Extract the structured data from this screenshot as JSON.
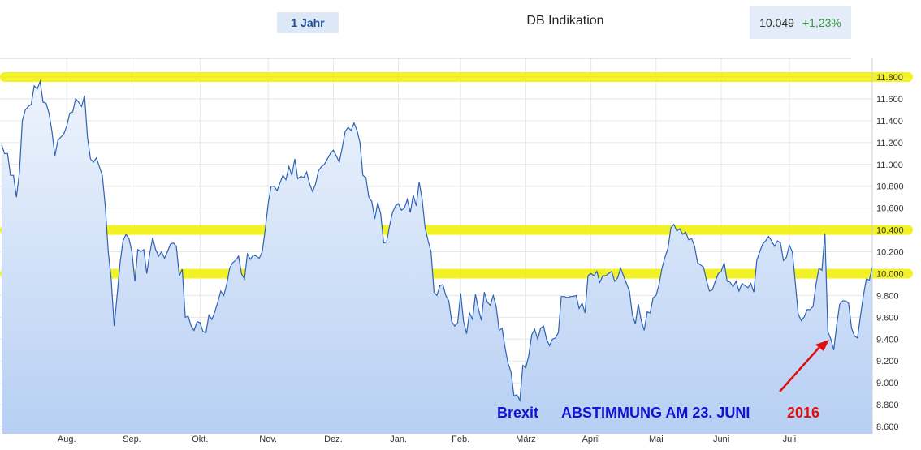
{
  "header": {
    "period_label": "1 Jahr",
    "instrument_label": "DB Indikation",
    "quote_value": "10.049",
    "quote_change": "+1,23%"
  },
  "colors": {
    "line": "#2f62b4",
    "area_top": "#eef4fd",
    "area_bottom": "#b7cff3",
    "highlight": "#f0f000",
    "grid": "#e6e6e6",
    "annotation_blue": "#1212d6",
    "annotation_red": "#e01010",
    "arrow": "#e01010"
  },
  "chart_data": {
    "type": "area",
    "ylim": [
      8550,
      11900
    ],
    "y_ticks": [
      "8.600",
      "8.800",
      "9.000",
      "9.200",
      "9.400",
      "9.600",
      "9.800",
      "10.000",
      "10.200",
      "10.400",
      "10.600",
      "10.800",
      "11.000",
      "11.200",
      "11.400",
      "11.600",
      "11.800"
    ],
    "y_tick_values": [
      8600,
      8800,
      9000,
      9200,
      9400,
      9600,
      9800,
      10000,
      10200,
      10400,
      10600,
      10800,
      11000,
      11200,
      11400,
      11600,
      11800
    ],
    "x_ticks": [
      "Aug.",
      "Sep.",
      "Okt.",
      "Nov.",
      "Dez.",
      "Jan.",
      "Feb.",
      "März",
      "April",
      "Mai",
      "Juni",
      "Juli"
    ],
    "x_tick_index": [
      22,
      44,
      67,
      90,
      112,
      134,
      155,
      177,
      199,
      221,
      243,
      266
    ],
    "highlight_levels": [
      11800,
      10400,
      10000
    ],
    "series": [
      {
        "values": [
          11180,
          11100,
          11100,
          10900,
          10900,
          10700,
          10920,
          11400,
          11500,
          11530,
          11550,
          11720,
          11690,
          11760,
          11570,
          11560,
          11470,
          11300,
          11080,
          11220,
          11250,
          11280,
          11350,
          11470,
          11480,
          11600,
          11570,
          11530,
          11630,
          11250,
          11050,
          11020,
          11060,
          10980,
          10900,
          10620,
          10200,
          9950,
          9520,
          9800,
          10100,
          10300,
          10360,
          10320,
          10200,
          9930,
          10220,
          10200,
          10220,
          10000,
          10180,
          10330,
          10220,
          10160,
          10200,
          10140,
          10200,
          10270,
          10280,
          10250,
          9980,
          10040,
          9600,
          9610,
          9520,
          9480,
          9560,
          9550,
          9470,
          9460,
          9620,
          9580,
          9650,
          9740,
          9840,
          9800,
          9900,
          10050,
          10100,
          10120,
          10160,
          10000,
          9950,
          10180,
          10130,
          10170,
          10160,
          10140,
          10200,
          10400,
          10640,
          10800,
          10800,
          10760,
          10830,
          10900,
          10860,
          10980,
          10900,
          11050,
          10870,
          10890,
          10880,
          10930,
          10820,
          10750,
          10820,
          10940,
          10980,
          11000,
          11050,
          11100,
          11130,
          11080,
          11020,
          11150,
          11300,
          11340,
          11310,
          11380,
          11310,
          11200,
          10900,
          10880,
          10700,
          10660,
          10500,
          10650,
          10550,
          10280,
          10290,
          10440,
          10560,
          10620,
          10640,
          10580,
          10600,
          10680,
          10560,
          10720,
          10620,
          10840,
          10680,
          10420,
          10300,
          10200,
          9830,
          9800,
          9890,
          9900,
          9800,
          9750,
          9560,
          9520,
          9550,
          9820,
          9560,
          9450,
          9640,
          9580,
          9810,
          9680,
          9570,
          9830,
          9740,
          9710,
          9800,
          9700,
          9480,
          9500,
          9320,
          9180,
          9100,
          8880,
          8890,
          8840,
          9160,
          9140,
          9250,
          9440,
          9490,
          9400,
          9500,
          9520,
          9400,
          9340,
          9400,
          9410,
          9460,
          9790,
          9790,
          9780,
          9790,
          9790,
          9800,
          9680,
          9730,
          9640,
          9980,
          10000,
          9980,
          10020,
          9920,
          9980,
          9980,
          10000,
          10020,
          9930,
          9960,
          10050,
          9980,
          9910,
          9840,
          9620,
          9540,
          9720,
          9570,
          9480,
          9650,
          9640,
          9780,
          9800,
          9900,
          10050,
          10150,
          10230,
          10420,
          10450,
          10390,
          10410,
          10360,
          10380,
          10310,
          10320,
          10250,
          10100,
          10080,
          10060,
          9940,
          9840,
          9850,
          9930,
          10000,
          10020,
          10100,
          9930,
          9920,
          9880,
          9930,
          9840,
          9910,
          9890,
          9870,
          9910,
          9830,
          10120,
          10200,
          10270,
          10300,
          10340,
          10300,
          10250,
          10300,
          10280,
          10120,
          10150,
          10260,
          10200,
          9920,
          9630,
          9570,
          9600,
          9670,
          9670,
          9700,
          9900,
          10050,
          10030,
          10370,
          9470,
          9400,
          9300,
          9530,
          9720,
          9750,
          9750,
          9730,
          9500,
          9430,
          9410,
          9610,
          9800,
          9950,
          9940,
          10060
        ]
      }
    ],
    "annotations": [
      {
        "text": "Brexit",
        "color": "blue"
      },
      {
        "text": "ABSTIMMUNG AM 23. JUNI",
        "color": "blue"
      },
      {
        "text": "2016",
        "color": "red"
      }
    ],
    "grid": true
  }
}
